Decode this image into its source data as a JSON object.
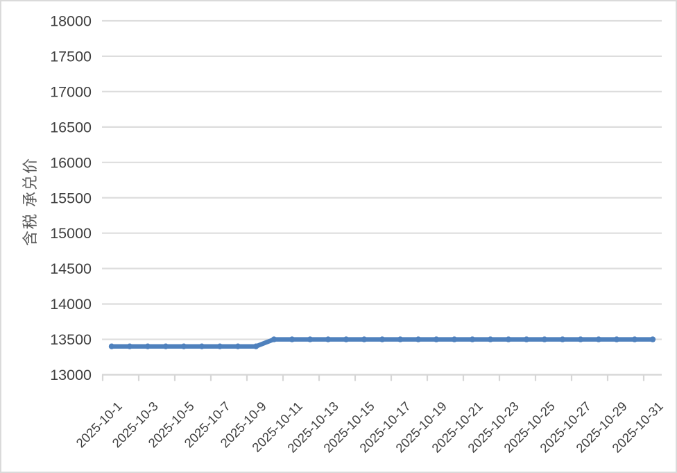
{
  "chart_data": {
    "type": "line",
    "title": "",
    "xlabel": "",
    "ylabel": "含税 承兑价",
    "categories": [
      "2025-10-1",
      "2025-10-2",
      "2025-10-3",
      "2025-10-4",
      "2025-10-5",
      "2025-10-6",
      "2025-10-7",
      "2025-10-8",
      "2025-10-9",
      "2025-10-10",
      "2025-10-11",
      "2025-10-12",
      "2025-10-13",
      "2025-10-14",
      "2025-10-15",
      "2025-10-16",
      "2025-10-17",
      "2025-10-18",
      "2025-10-19",
      "2025-10-20",
      "2025-10-21",
      "2025-10-22",
      "2025-10-23",
      "2025-10-24",
      "2025-10-25",
      "2025-10-26",
      "2025-10-27",
      "2025-10-28",
      "2025-10-29",
      "2025-10-30",
      "2025-10-31"
    ],
    "values": [
      13400,
      13400,
      13400,
      13400,
      13400,
      13400,
      13400,
      13400,
      13400,
      13500,
      13500,
      13500,
      13500,
      13500,
      13500,
      13500,
      13500,
      13500,
      13500,
      13500,
      13500,
      13500,
      13500,
      13500,
      13500,
      13500,
      13500,
      13500,
      13500,
      13500,
      13500
    ],
    "ylim": [
      13000,
      18000
    ],
    "ytick_step": 500,
    "x_label_interval": 2,
    "grid": true,
    "legend": "none",
    "colors": {
      "line": "#4F81BD",
      "grid": "#dddddd",
      "axis": "#d6d6d6",
      "tick_text": "#3f3f3f",
      "ylabel_text": "#595959",
      "background": "#ffffff",
      "border": "#dadada"
    }
  }
}
